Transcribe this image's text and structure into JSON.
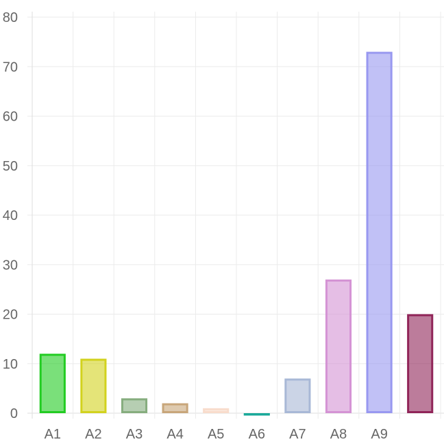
{
  "chart_data": {
    "type": "bar",
    "title": "",
    "xlabel": "",
    "ylabel": "",
    "categories": [
      "A1",
      "A2",
      "A3",
      "A4",
      "A5",
      "A6",
      "A7",
      "A8",
      "A9",
      ""
    ],
    "values": [
      12,
      11,
      3,
      2,
      1,
      -0.4,
      7,
      27,
      73,
      20
    ],
    "ylim": [
      0,
      80
    ],
    "yticks": [
      "0",
      "10",
      "20",
      "30",
      "40",
      "50",
      "60",
      "70",
      "80"
    ],
    "grid": true,
    "legend": "none",
    "border_colors": [
      "#22cc22",
      "#d2d21e",
      "#86ad7e",
      "#c8a67a",
      "#f8dccc",
      "#1aa99a",
      "#a8b8d6",
      "#d493d4",
      "#9898f0",
      "#902458"
    ],
    "fill_opacity": 0.6
  }
}
